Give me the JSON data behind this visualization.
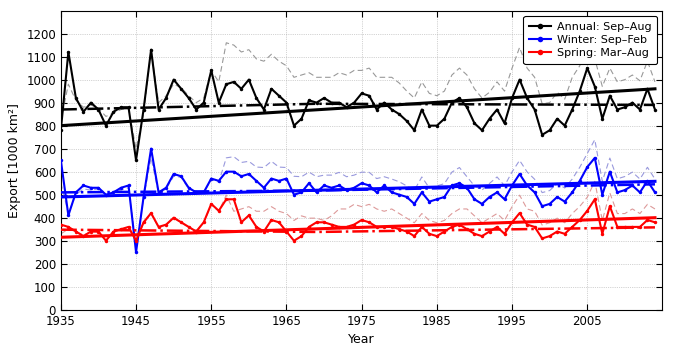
{
  "years": [
    1935,
    1936,
    1937,
    1938,
    1939,
    1940,
    1941,
    1942,
    1943,
    1944,
    1945,
    1946,
    1947,
    1948,
    1949,
    1950,
    1951,
    1952,
    1953,
    1954,
    1955,
    1956,
    1957,
    1958,
    1959,
    1960,
    1961,
    1962,
    1963,
    1964,
    1965,
    1966,
    1967,
    1968,
    1969,
    1970,
    1971,
    1972,
    1973,
    1974,
    1975,
    1976,
    1977,
    1978,
    1979,
    1980,
    1981,
    1982,
    1983,
    1984,
    1985,
    1986,
    1987,
    1988,
    1989,
    1990,
    1991,
    1992,
    1993,
    1994,
    1995,
    1996,
    1997,
    1998,
    1999,
    2000,
    2001,
    2002,
    2003,
    2004,
    2005,
    2006,
    2007,
    2008,
    2009,
    2010,
    2011,
    2012,
    2013,
    2014
  ],
  "annual": [
    780,
    1120,
    920,
    860,
    900,
    870,
    800,
    860,
    880,
    880,
    650,
    870,
    1130,
    870,
    920,
    1000,
    960,
    920,
    870,
    900,
    1040,
    900,
    980,
    990,
    960,
    1000,
    920,
    870,
    960,
    930,
    900,
    800,
    830,
    910,
    900,
    920,
    900,
    900,
    880,
    900,
    940,
    930,
    870,
    900,
    870,
    850,
    820,
    780,
    870,
    800,
    800,
    830,
    900,
    920,
    880,
    810,
    780,
    830,
    870,
    810,
    920,
    1000,
    920,
    870,
    760,
    780,
    830,
    800,
    870,
    950,
    1050,
    970,
    830,
    930,
    870,
    880,
    900,
    870,
    960,
    870
  ],
  "winter": [
    650,
    410,
    510,
    540,
    530,
    530,
    500,
    510,
    530,
    540,
    250,
    490,
    700,
    510,
    530,
    590,
    580,
    530,
    510,
    510,
    570,
    560,
    600,
    600,
    580,
    590,
    560,
    530,
    570,
    560,
    570,
    500,
    510,
    550,
    510,
    540,
    530,
    540,
    520,
    530,
    550,
    540,
    510,
    540,
    510,
    500,
    490,
    460,
    510,
    470,
    480,
    490,
    540,
    550,
    530,
    480,
    460,
    490,
    510,
    480,
    540,
    590,
    540,
    510,
    450,
    460,
    490,
    470,
    510,
    560,
    620,
    660,
    500,
    600,
    510,
    520,
    540,
    510,
    560,
    510
  ],
  "spring": [
    370,
    360,
    340,
    320,
    340,
    340,
    300,
    340,
    350,
    360,
    300,
    380,
    420,
    360,
    370,
    400,
    380,
    360,
    340,
    380,
    460,
    430,
    480,
    480,
    380,
    410,
    360,
    340,
    390,
    380,
    340,
    300,
    320,
    360,
    380,
    380,
    370,
    360,
    360,
    370,
    390,
    380,
    360,
    360,
    360,
    350,
    340,
    320,
    360,
    330,
    320,
    340,
    360,
    370,
    350,
    330,
    320,
    340,
    360,
    330,
    380,
    420,
    370,
    360,
    310,
    320,
    340,
    330,
    360,
    390,
    430,
    480,
    330,
    450,
    360,
    360,
    360,
    360,
    390,
    380
  ],
  "annual_thin": [
    820,
    980,
    910,
    880,
    890,
    875,
    840,
    855,
    870,
    875,
    700,
    850,
    1130,
    900,
    930,
    980,
    965,
    930,
    900,
    920,
    1040,
    990,
    1160,
    1150,
    1120,
    1130,
    1090,
    1080,
    1110,
    1080,
    1060,
    1010,
    1020,
    1030,
    1010,
    1010,
    1010,
    1030,
    1020,
    1040,
    1040,
    1050,
    1010,
    1010,
    1010,
    985,
    950,
    920,
    990,
    940,
    930,
    950,
    1020,
    1050,
    1020,
    960,
    920,
    945,
    990,
    950,
    1050,
    1140,
    1050,
    1010,
    895,
    900,
    945,
    915,
    1010,
    1060,
    1170,
    1090,
    970,
    1050,
    990,
    1000,
    1020,
    995,
    1080,
    990
  ],
  "winter_thin": [
    550,
    420,
    500,
    525,
    520,
    525,
    500,
    508,
    520,
    530,
    280,
    485,
    660,
    505,
    525,
    580,
    575,
    525,
    510,
    510,
    565,
    555,
    660,
    665,
    640,
    645,
    620,
    618,
    645,
    620,
    618,
    580,
    578,
    598,
    578,
    585,
    585,
    597,
    578,
    585,
    598,
    597,
    570,
    578,
    568,
    556,
    538,
    519,
    577,
    529,
    538,
    548,
    598,
    618,
    578,
    538,
    520,
    549,
    577,
    539,
    599,
    649,
    599,
    567,
    509,
    518,
    549,
    529,
    568,
    619,
    679,
    739,
    558,
    659,
    569,
    579,
    598,
    568,
    619,
    568
  ],
  "spring_thin": [
    330,
    350,
    340,
    325,
    338,
    338,
    302,
    338,
    348,
    355,
    298,
    375,
    418,
    358,
    368,
    398,
    378,
    358,
    340,
    378,
    456,
    428,
    498,
    428,
    438,
    448,
    428,
    428,
    448,
    428,
    418,
    388,
    408,
    398,
    398,
    388,
    408,
    438,
    438,
    458,
    448,
    458,
    438,
    428,
    438,
    418,
    398,
    378,
    418,
    388,
    378,
    388,
    418,
    438,
    438,
    408,
    378,
    398,
    418,
    388,
    448,
    498,
    438,
    428,
    368,
    378,
    398,
    378,
    418,
    449,
    489,
    558,
    388,
    508,
    418,
    418,
    438,
    418,
    458,
    438
  ],
  "annual_trend_x": [
    1935,
    2014
  ],
  "annual_trend_y": [
    800,
    960
  ],
  "annual_trend2_x": [
    1935,
    1969,
    2014
  ],
  "annual_trend2_y": [
    870,
    895,
    890
  ],
  "winter_trend_x": [
    1935,
    2014
  ],
  "winter_trend_y": [
    490,
    558
  ],
  "winter_trend2_x": [
    1935,
    1969,
    2014
  ],
  "winter_trend2_y": [
    510,
    518,
    545
  ],
  "spring_trend_x": [
    1935,
    2014
  ],
  "spring_trend_y": [
    315,
    400
  ],
  "spring_trend2_x": [
    1935,
    1969,
    2014
  ],
  "spring_trend2_y": [
    348,
    338,
    358
  ],
  "color_annual": "#000000",
  "color_winter": "#0000ff",
  "color_spring": "#ff0000",
  "ylim": [
    0,
    1300
  ],
  "xlim": [
    1935,
    2015
  ],
  "ylabel": "Export [1000 km²]",
  "xlabel": "Year",
  "legend_labels": [
    "Annual: Sep–Aug",
    "Winter: Sep–Feb",
    "Spring: Mar–Aug"
  ],
  "yticks": [
    0,
    100,
    200,
    300,
    400,
    500,
    600,
    700,
    800,
    900,
    1000,
    1100,
    1200
  ],
  "xticks": [
    1935,
    1945,
    1955,
    1965,
    1975,
    1985,
    1995,
    2005
  ]
}
